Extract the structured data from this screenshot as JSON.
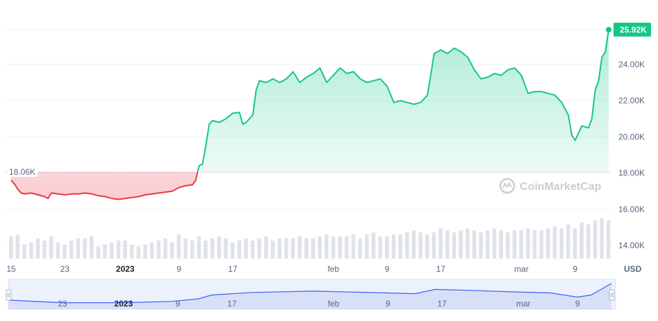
{
  "chart_data": {
    "type": "area",
    "unit_label": "USD",
    "watermark": "CoinMarketCap",
    "baseline_label": "18.06K",
    "baseline_value": 18.06,
    "current_label": "25.92K",
    "current_value": 25.92,
    "ylim": [
      13.2,
      26.6
    ],
    "y_ticks": [
      {
        "value": 24.0,
        "label": "24.00K"
      },
      {
        "value": 22.0,
        "label": "22.00K"
      },
      {
        "value": 20.0,
        "label": "20.00K"
      },
      {
        "value": 18.0,
        "label": "18.00K"
      },
      {
        "value": 16.0,
        "label": "16.00K"
      },
      {
        "value": 14.0,
        "label": "14.00K"
      }
    ],
    "x_ticks": [
      {
        "label": "15",
        "day": 0,
        "bold": false
      },
      {
        "label": "23",
        "day": 8,
        "bold": false
      },
      {
        "label": "2023",
        "day": 17,
        "bold": true
      },
      {
        "label": "9",
        "day": 25,
        "bold": false
      },
      {
        "label": "17",
        "day": 33,
        "bold": false
      },
      {
        "label": "feb",
        "day": 48,
        "bold": false
      },
      {
        "label": "9",
        "day": 56,
        "bold": false
      },
      {
        "label": "17",
        "day": 64,
        "bold": false
      },
      {
        "label": "mar",
        "day": 76,
        "bold": false
      },
      {
        "label": "9",
        "day": 84,
        "bold": false
      }
    ],
    "navigator_ticks": [
      {
        "label": "23",
        "day": 8,
        "bold": false
      },
      {
        "label": "2023",
        "day": 17,
        "bold": true
      },
      {
        "label": "9",
        "day": 25,
        "bold": false
      },
      {
        "label": "17",
        "day": 33,
        "bold": false
      },
      {
        "label": "feb",
        "day": 48,
        "bold": false
      },
      {
        "label": "9",
        "day": 56,
        "bold": false
      },
      {
        "label": "17",
        "day": 64,
        "bold": false
      },
      {
        "label": "mar",
        "day": 76,
        "bold": false
      },
      {
        "label": "9",
        "day": 84,
        "bold": false
      }
    ],
    "series": [
      {
        "points": [
          [
            0,
            17.6
          ],
          [
            0.5,
            17.4
          ],
          [
            1,
            17.1
          ],
          [
            1.5,
            16.9
          ],
          [
            2,
            16.85
          ],
          [
            3,
            16.9
          ],
          [
            4,
            16.8
          ],
          [
            5,
            16.7
          ],
          [
            5.5,
            16.6
          ],
          [
            6,
            16.9
          ],
          [
            7,
            16.85
          ],
          [
            8,
            16.8
          ],
          [
            9,
            16.85
          ],
          [
            10,
            16.85
          ],
          [
            11,
            16.9
          ],
          [
            12,
            16.85
          ],
          [
            13,
            16.75
          ],
          [
            14,
            16.7
          ],
          [
            15,
            16.6
          ],
          [
            16,
            16.55
          ],
          [
            17,
            16.6
          ],
          [
            18,
            16.65
          ],
          [
            19,
            16.7
          ],
          [
            20,
            16.8
          ],
          [
            21,
            16.85
          ],
          [
            22,
            16.9
          ],
          [
            23,
            16.95
          ],
          [
            24,
            17.0
          ],
          [
            25,
            17.2
          ],
          [
            26,
            17.3
          ],
          [
            27,
            17.35
          ],
          [
            27.5,
            17.6
          ],
          [
            27.8,
            18.1
          ],
          [
            28,
            18.4
          ],
          [
            28.5,
            18.5
          ],
          [
            29,
            19.5
          ],
          [
            29.5,
            20.7
          ],
          [
            30,
            20.9
          ],
          [
            31,
            20.8
          ],
          [
            32,
            21.0
          ],
          [
            33,
            21.3
          ],
          [
            34,
            21.35
          ],
          [
            34.5,
            20.7
          ],
          [
            35,
            20.8
          ],
          [
            36,
            21.2
          ],
          [
            36.5,
            22.6
          ],
          [
            37,
            23.1
          ],
          [
            38,
            23.0
          ],
          [
            39,
            23.2
          ],
          [
            40,
            23.0
          ],
          [
            41,
            23.2
          ],
          [
            42,
            23.6
          ],
          [
            43,
            23.0
          ],
          [
            44,
            23.3
          ],
          [
            45,
            23.5
          ],
          [
            46,
            23.8
          ],
          [
            47,
            23.0
          ],
          [
            48,
            23.4
          ],
          [
            49,
            23.8
          ],
          [
            50,
            23.5
          ],
          [
            51,
            23.6
          ],
          [
            52,
            23.2
          ],
          [
            53,
            23.0
          ],
          [
            54,
            23.1
          ],
          [
            55,
            23.2
          ],
          [
            56,
            22.8
          ],
          [
            57,
            21.9
          ],
          [
            58,
            22.0
          ],
          [
            59,
            21.9
          ],
          [
            60,
            21.8
          ],
          [
            61,
            21.9
          ],
          [
            62,
            22.3
          ],
          [
            62.5,
            23.4
          ],
          [
            63,
            24.6
          ],
          [
            64,
            24.8
          ],
          [
            65,
            24.6
          ],
          [
            66,
            24.9
          ],
          [
            67,
            24.7
          ],
          [
            68,
            24.4
          ],
          [
            69,
            23.7
          ],
          [
            70,
            23.2
          ],
          [
            71,
            23.3
          ],
          [
            72,
            23.5
          ],
          [
            73,
            23.4
          ],
          [
            74,
            23.7
          ],
          [
            75,
            23.8
          ],
          [
            76,
            23.4
          ],
          [
            77,
            22.4
          ],
          [
            78,
            22.5
          ],
          [
            79,
            22.5
          ],
          [
            80,
            22.4
          ],
          [
            81,
            22.3
          ],
          [
            82,
            21.9
          ],
          [
            83,
            21.2
          ],
          [
            83.5,
            20.1
          ],
          [
            84,
            19.8
          ],
          [
            84.5,
            20.2
          ],
          [
            85,
            20.6
          ],
          [
            86,
            20.5
          ],
          [
            86.5,
            21.0
          ],
          [
            87,
            22.6
          ],
          [
            87.5,
            23.1
          ],
          [
            88,
            24.4
          ],
          [
            88.5,
            24.7
          ],
          [
            89,
            25.92
          ]
        ]
      }
    ],
    "volume": [
      0.55,
      0.6,
      0.35,
      0.4,
      0.5,
      0.45,
      0.55,
      0.4,
      0.35,
      0.45,
      0.5,
      0.5,
      0.55,
      0.3,
      0.35,
      0.4,
      0.45,
      0.45,
      0.35,
      0.3,
      0.35,
      0.4,
      0.45,
      0.5,
      0.4,
      0.6,
      0.5,
      0.45,
      0.55,
      0.45,
      0.5,
      0.55,
      0.5,
      0.4,
      0.45,
      0.5,
      0.45,
      0.5,
      0.55,
      0.45,
      0.5,
      0.5,
      0.5,
      0.55,
      0.5,
      0.5,
      0.55,
      0.6,
      0.55,
      0.55,
      0.55,
      0.6,
      0.5,
      0.6,
      0.65,
      0.55,
      0.55,
      0.6,
      0.6,
      0.65,
      0.7,
      0.65,
      0.6,
      0.65,
      0.75,
      0.7,
      0.65,
      0.7,
      0.75,
      0.7,
      0.65,
      0.7,
      0.75,
      0.7,
      0.65,
      0.7,
      0.7,
      0.75,
      0.7,
      0.7,
      0.75,
      0.8,
      0.75,
      0.85,
      0.75,
      0.9,
      0.85,
      0.95,
      1.0,
      0.95
    ],
    "navigator_points": [
      [
        0,
        0.3
      ],
      [
        8,
        0.2
      ],
      [
        17,
        0.2
      ],
      [
        24,
        0.25
      ],
      [
        28,
        0.35
      ],
      [
        30,
        0.5
      ],
      [
        36,
        0.6
      ],
      [
        45,
        0.65
      ],
      [
        56,
        0.58
      ],
      [
        60,
        0.55
      ],
      [
        63,
        0.72
      ],
      [
        68,
        0.68
      ],
      [
        75,
        0.62
      ],
      [
        80,
        0.58
      ],
      [
        84,
        0.42
      ],
      [
        86,
        0.5
      ],
      [
        88,
        0.8
      ],
      [
        89,
        0.95
      ]
    ]
  }
}
